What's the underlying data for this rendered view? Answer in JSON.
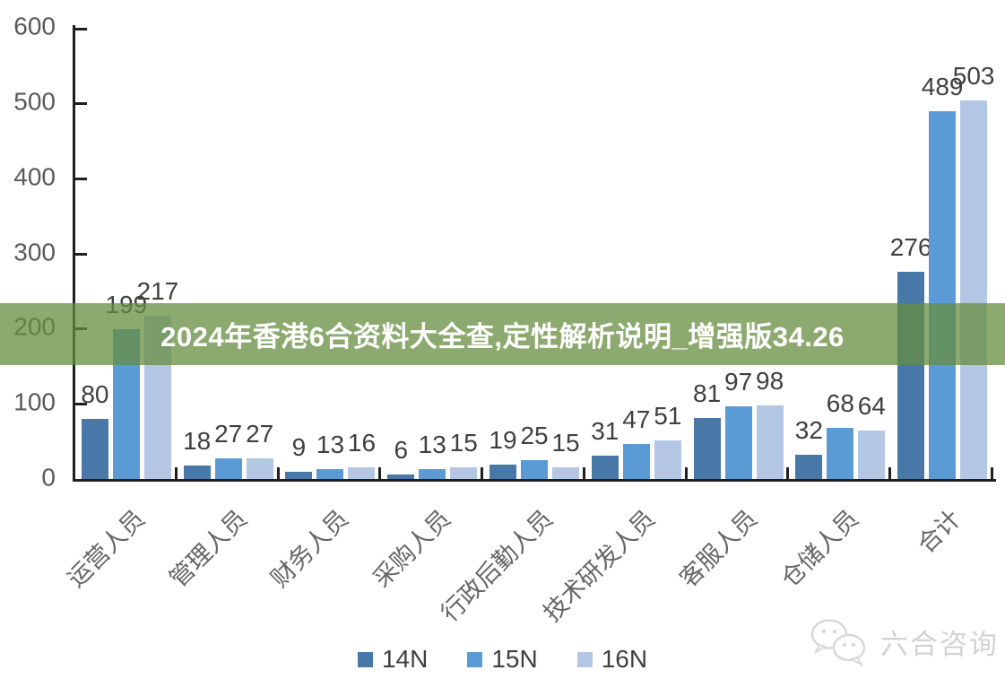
{
  "banner": {
    "text": "2024年香港6合资料大全查,定性解析说明_增强版34.26",
    "bg_rgba": "rgba(102,141,63,0.75)",
    "text_color": "#FFFFFF"
  },
  "watermark": {
    "text": "六合咨询",
    "icon": "wechat-icon",
    "color": "#D2D2D2"
  },
  "chart_data": {
    "type": "bar",
    "title": "",
    "xlabel": "",
    "ylabel": "",
    "categories": [
      "运营人员",
      "管理人员",
      "财务人员",
      "采购人员",
      "行政后勤人员",
      "技术研发人员",
      "客服人员",
      "仓储人员",
      "合计"
    ],
    "series": [
      {
        "name": "14N",
        "color": "#4878A8",
        "values": [
          80,
          18,
          9,
          6,
          19,
          31,
          81,
          32,
          276
        ]
      },
      {
        "name": "15N",
        "color": "#5B9BD5",
        "values": [
          199,
          27,
          13,
          13,
          25,
          47,
          97,
          68,
          489
        ]
      },
      {
        "name": "16N",
        "color": "#B3C6E4",
        "values": [
          217,
          27,
          16,
          15,
          15,
          51,
          98,
          64,
          503
        ]
      }
    ],
    "ylim": [
      0,
      600
    ],
    "yticks": [
      0,
      100,
      200,
      300,
      400,
      500,
      600
    ],
    "grid": false,
    "value_labels": true,
    "legend_position": "bottom",
    "axis_color": "#1F1F1F",
    "tick_label_color": "#595959",
    "value_label_color": "#3F3F3F",
    "category_label_rotation_deg": -45
  }
}
